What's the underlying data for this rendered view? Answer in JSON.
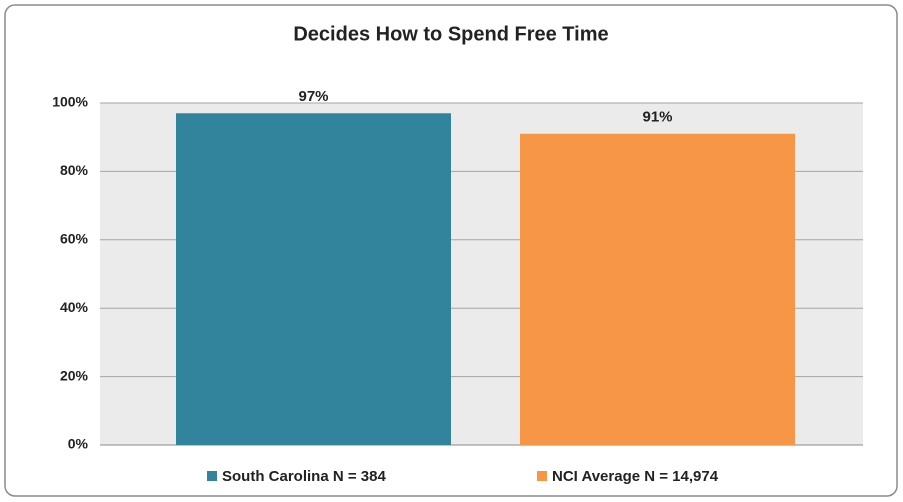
{
  "chart_data": {
    "type": "bar",
    "title": "Decides How to Spend Free Time",
    "series": [
      {
        "name": "South Carolina N = 384",
        "color": "#31849b",
        "values": [
          97
        ],
        "value_labels": [
          "97%"
        ]
      },
      {
        "name": "NCI Average N = 14,974",
        "color": "#f79646",
        "values": [
          91
        ],
        "value_labels": [
          "91%"
        ]
      }
    ],
    "ylim": [
      0,
      100
    ],
    "yticks": [
      {
        "value": 0,
        "label": "0%"
      },
      {
        "value": 20,
        "label": "20%"
      },
      {
        "value": 40,
        "label": "40%"
      },
      {
        "value": 60,
        "label": "60%"
      },
      {
        "value": 80,
        "label": "80%"
      },
      {
        "value": 100,
        "label": "100%"
      }
    ],
    "grid": true,
    "legend": "bottom"
  }
}
